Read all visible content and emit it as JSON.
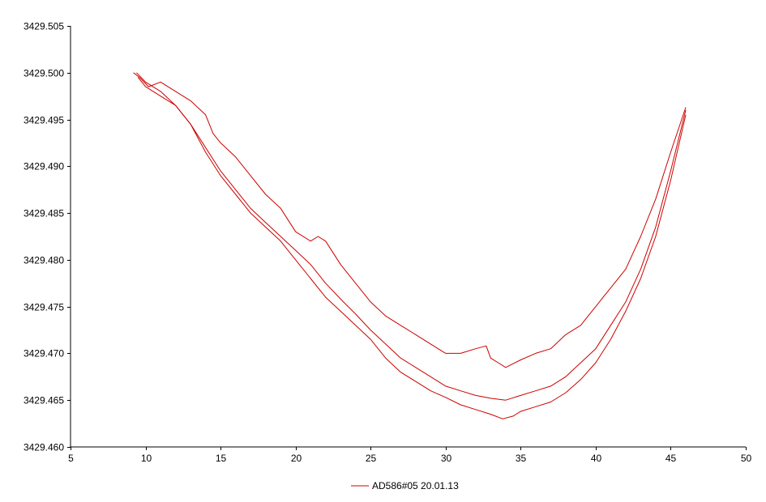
{
  "chart_data": {
    "type": "line",
    "title": "",
    "xlabel": "",
    "ylabel": "",
    "xlim": [
      5,
      50
    ],
    "ylim": [
      3429.46,
      3429.505
    ],
    "x_ticks": [
      "5",
      "10",
      "15",
      "20",
      "25",
      "30",
      "35",
      "40",
      "45",
      "50"
    ],
    "y_ticks": [
      "3429.460",
      "3429.465",
      "3429.470",
      "3429.475",
      "3429.480",
      "3429.485",
      "3429.490",
      "3429.495",
      "3429.500",
      "3429.505"
    ],
    "grid": false,
    "legend_position": "bottom-center",
    "legend": [
      {
        "label": "AD586#05 20.01.13",
        "color": "#cc0000"
      }
    ],
    "series": [
      {
        "color": "#cc0000",
        "x": [
          9.2,
          9.6,
          10.2,
          11.0,
          12.0,
          13.0,
          14.0,
          14.5,
          15.0,
          16.0,
          17.0,
          18.0,
          19.0,
          20.0,
          21.0,
          21.5,
          22.0,
          23.0,
          24.0,
          25.0,
          26.0,
          27.0,
          28.0,
          29.0,
          29.5,
          30.0,
          31.0,
          32.0,
          32.7,
          33.0,
          33.5,
          34.0,
          35.0,
          36.0,
          37.0,
          38.0,
          39.0,
          39.5,
          40.0,
          40.5,
          41.0,
          42.0,
          43.0,
          44.0,
          45.0,
          46.0
        ],
        "y": [
          3429.5,
          3429.4995,
          3429.4985,
          3429.499,
          3429.498,
          3429.497,
          3429.4955,
          3429.4935,
          3429.4925,
          3429.491,
          3429.489,
          3429.487,
          3429.4855,
          3429.483,
          3429.482,
          3429.4825,
          3429.482,
          3429.4795,
          3429.4775,
          3429.4755,
          3429.474,
          3429.473,
          3429.472,
          3429.471,
          3429.4705,
          3429.47,
          3429.47,
          3429.4705,
          3429.4708,
          3429.4695,
          3429.469,
          3429.4685,
          3429.4693,
          3429.47,
          3429.4705,
          3429.472,
          3429.473,
          3429.474,
          3429.475,
          3429.476,
          3429.477,
          3429.479,
          3429.4825,
          3429.4865,
          3429.4915,
          3429.4963
        ]
      },
      {
        "color": "#cc0000",
        "x": [
          9.4,
          10.0,
          11.0,
          12.0,
          13.0,
          14.0,
          15.0,
          16.0,
          17.0,
          18.0,
          19.0,
          20.0,
          21.0,
          22.0,
          23.0,
          24.0,
          25.0,
          26.0,
          27.0,
          28.0,
          29.0,
          30.0,
          31.0,
          32.0,
          33.0,
          34.0,
          35.0,
          36.0,
          37.0,
          38.0,
          39.0,
          40.0,
          41.0,
          42.0,
          43.0,
          44.0,
          45.0,
          46.0
        ],
        "y": [
          3429.5,
          3429.499,
          3429.498,
          3429.4965,
          3429.4945,
          3429.492,
          3429.4895,
          3429.4875,
          3429.4855,
          3429.484,
          3429.4825,
          3429.481,
          3429.4795,
          3429.4775,
          3429.4758,
          3429.4742,
          3429.4725,
          3429.471,
          3429.4695,
          3429.4685,
          3429.4675,
          3429.4665,
          3429.466,
          3429.4655,
          3429.4652,
          3429.465,
          3429.4655,
          3429.466,
          3429.4665,
          3429.4675,
          3429.469,
          3429.4705,
          3429.473,
          3429.4755,
          3429.479,
          3429.4835,
          3429.4895,
          3429.496
        ]
      },
      {
        "color": "#cc0000",
        "x": [
          9.5,
          10.0,
          11.0,
          12.0,
          13.0,
          14.0,
          15.0,
          16.0,
          17.0,
          18.0,
          19.0,
          20.0,
          21.0,
          22.0,
          23.0,
          24.0,
          25.0,
          26.0,
          27.0,
          28.0,
          29.0,
          30.0,
          31.0,
          32.0,
          33.0,
          33.8,
          34.5,
          35.0,
          36.0,
          37.0,
          38.0,
          39.0,
          40.0,
          41.0,
          42.0,
          43.0,
          44.0,
          45.0,
          46.0
        ],
        "y": [
          3429.4995,
          3429.4985,
          3429.4975,
          3429.4965,
          3429.4945,
          3429.4915,
          3429.489,
          3429.487,
          3429.485,
          3429.4835,
          3429.482,
          3429.48,
          3429.478,
          3429.476,
          3429.4745,
          3429.473,
          3429.4715,
          3429.4695,
          3429.468,
          3429.467,
          3429.466,
          3429.4653,
          3429.4645,
          3429.464,
          3429.4635,
          3429.463,
          3429.4633,
          3429.4638,
          3429.4643,
          3429.4648,
          3429.4658,
          3429.4672,
          3429.469,
          3429.4715,
          3429.4745,
          3429.478,
          3429.4825,
          3429.4885,
          3429.4955
        ]
      }
    ]
  }
}
